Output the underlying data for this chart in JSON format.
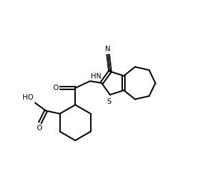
{
  "background_color": "#ffffff",
  "line_color": "#000000",
  "text_color": "#000000",
  "line_width": 1.5,
  "font_size": 7.5,
  "figsize": [
    2.9,
    2.61
  ],
  "dpi": 100,
  "xlim": [
    0,
    10
  ],
  "ylim": [
    0,
    9
  ]
}
